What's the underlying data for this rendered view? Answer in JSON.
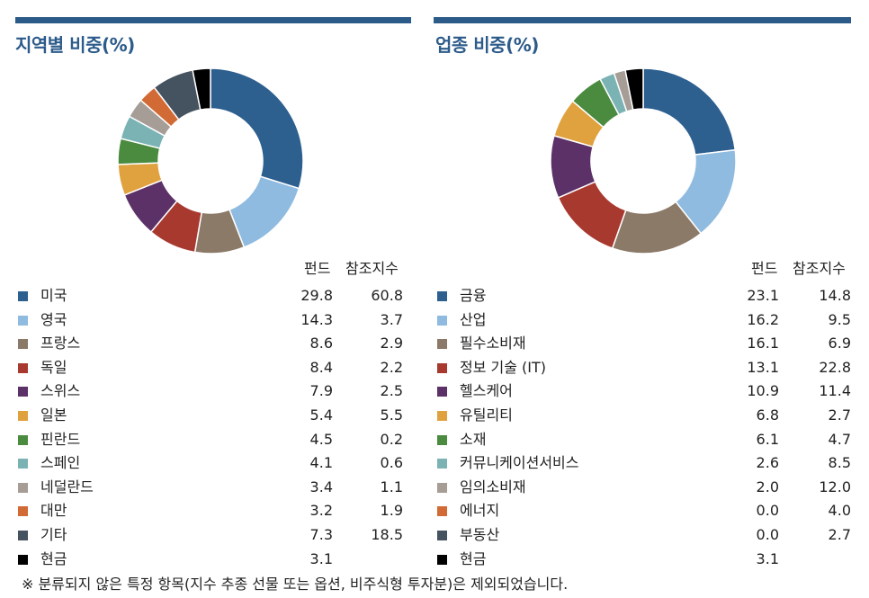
{
  "panels": [
    {
      "title": "지역별 비중(%)",
      "col_fund": "펀드",
      "col_index": "참조지수",
      "items": [
        {
          "label": "미국",
          "fund": "29.8",
          "index": "60.8",
          "color": "#2d5f8f"
        },
        {
          "label": "영국",
          "fund": "14.3",
          "index": "3.7",
          "color": "#8fbbe0"
        },
        {
          "label": "프랑스",
          "fund": "8.6",
          "index": "2.9",
          "color": "#8c7a68"
        },
        {
          "label": "독일",
          "fund": "8.4",
          "index": "2.2",
          "color": "#a8392f"
        },
        {
          "label": "스위스",
          "fund": "7.9",
          "index": "2.5",
          "color": "#5c3167"
        },
        {
          "label": "일본",
          "fund": "5.4",
          "index": "5.5",
          "color": "#e0a13f"
        },
        {
          "label": "핀란드",
          "fund": "4.5",
          "index": "0.2",
          "color": "#4a8b3f"
        },
        {
          "label": "스페인",
          "fund": "4.1",
          "index": "0.6",
          "color": "#7bb3b5"
        },
        {
          "label": "네덜란드",
          "fund": "3.4",
          "index": "1.1",
          "color": "#a59d96"
        },
        {
          "label": "대만",
          "fund": "3.2",
          "index": "1.9",
          "color": "#d26a35"
        },
        {
          "label": "기타",
          "fund": "7.3",
          "index": "18.5",
          "color": "#45525f"
        },
        {
          "label": "현금",
          "fund": "3.1",
          "index": "",
          "color": "#000000"
        }
      ]
    },
    {
      "title": "업종 비중(%)",
      "col_fund": "펀드",
      "col_index": "참조지수",
      "items": [
        {
          "label": "금융",
          "fund": "23.1",
          "index": "14.8",
          "color": "#2d5f8f"
        },
        {
          "label": "산업",
          "fund": "16.2",
          "index": "9.5",
          "color": "#8fbbe0"
        },
        {
          "label": "필수소비재",
          "fund": "16.1",
          "index": "6.9",
          "color": "#8c7a68"
        },
        {
          "label": "정보 기술 (IT)",
          "fund": "13.1",
          "index": "22.8",
          "color": "#a8392f"
        },
        {
          "label": "헬스케어",
          "fund": "10.9",
          "index": "11.4",
          "color": "#5c3167"
        },
        {
          "label": "유틸리티",
          "fund": "6.8",
          "index": "2.7",
          "color": "#e0a13f"
        },
        {
          "label": "소재",
          "fund": "6.1",
          "index": "4.7",
          "color": "#4a8b3f"
        },
        {
          "label": "커뮤니케이션서비스",
          "fund": "2.6",
          "index": "8.5",
          "color": "#7bb3b5"
        },
        {
          "label": "임의소비재",
          "fund": "2.0",
          "index": "12.0",
          "color": "#a59d96"
        },
        {
          "label": "에너지",
          "fund": "0.0",
          "index": "4.0",
          "color": "#d26a35"
        },
        {
          "label": "부동산",
          "fund": "0.0",
          "index": "2.7",
          "color": "#45525f"
        },
        {
          "label": "현금",
          "fund": "3.1",
          "index": "",
          "color": "#000000"
        }
      ]
    }
  ],
  "footnote": "※ 분류되지 않은 특정 항목(지수 추종 선물 또는 옵션, 비주식형 투자분)은 제외되었습니다.",
  "chart_data": [
    {
      "type": "pie",
      "title": "지역별 비중(%)",
      "categories": [
        "미국",
        "영국",
        "프랑스",
        "독일",
        "스위스",
        "일본",
        "핀란드",
        "스페인",
        "네덜란드",
        "대만",
        "기타",
        "현금"
      ],
      "values": [
        29.8,
        14.3,
        8.6,
        8.4,
        7.9,
        5.4,
        4.5,
        4.1,
        3.4,
        3.2,
        7.3,
        3.1
      ]
    },
    {
      "type": "pie",
      "title": "업종 비중(%)",
      "categories": [
        "금융",
        "산업",
        "필수소비재",
        "정보 기술 (IT)",
        "헬스케어",
        "유틸리티",
        "소재",
        "커뮤니케이션서비스",
        "임의소비재",
        "에너지",
        "부동산",
        "현금"
      ],
      "values": [
        23.1,
        16.2,
        16.1,
        13.1,
        10.9,
        6.8,
        6.1,
        2.6,
        2.0,
        0.0,
        0.0,
        3.1
      ]
    }
  ]
}
